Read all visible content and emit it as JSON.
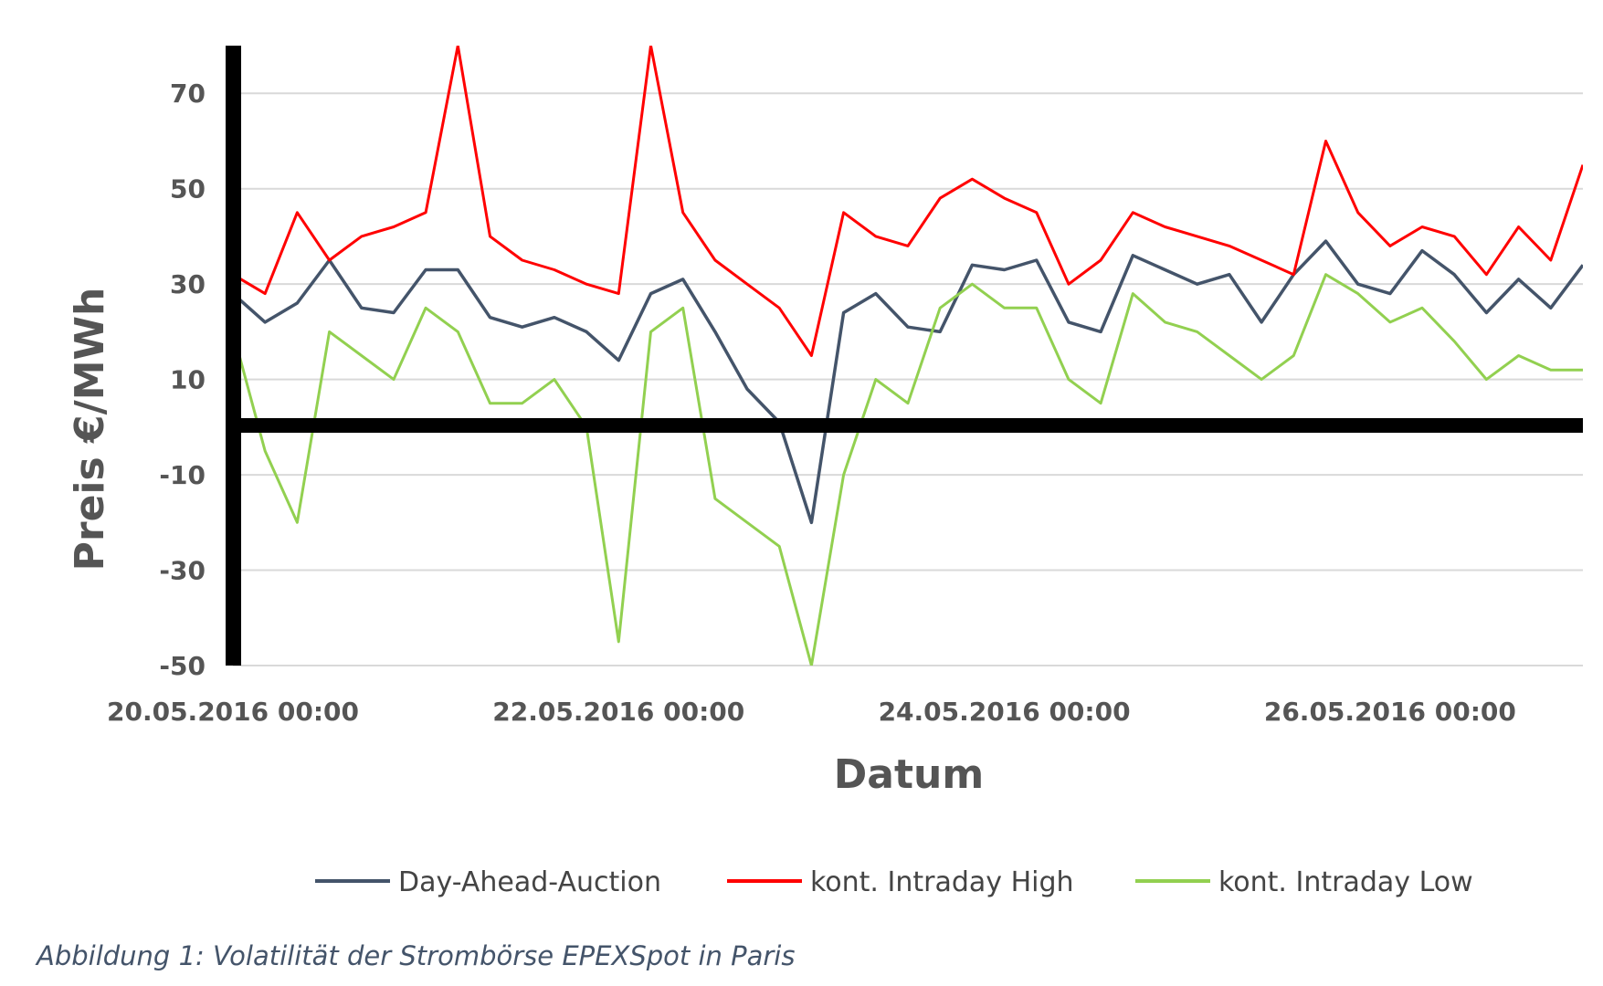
{
  "chart_data": {
    "type": "line",
    "xlabel": "Datum",
    "ylabel": "Preis €/MWh",
    "xlim": [
      "20.05.2016 00:00",
      "27.05.2016 00:00"
    ],
    "ylim": [
      -50,
      80
    ],
    "yticks": [
      70,
      50,
      30,
      10,
      -10,
      -30,
      -50
    ],
    "xticks": [
      "20.05.2016 00:00",
      "22.05.2016 00:00",
      "24.05.2016 00:00",
      "26.05.2016 00:00"
    ],
    "grid": "horizontal",
    "legend_position": "bottom",
    "series": [
      {
        "name": "Day-Ahead-Auction",
        "color": "#44546A",
        "x": [
          "20.05.2016 00:00",
          "20.05.2016 04:00",
          "20.05.2016 08:00",
          "20.05.2016 12:00",
          "20.05.2016 16:00",
          "20.05.2016 20:00",
          "21.05.2016 00:00",
          "21.05.2016 04:00",
          "21.05.2016 08:00",
          "21.05.2016 12:00",
          "21.05.2016 16:00",
          "21.05.2016 20:00",
          "22.05.2016 00:00",
          "22.05.2016 04:00",
          "22.05.2016 08:00",
          "22.05.2016 12:00",
          "22.05.2016 16:00",
          "22.05.2016 20:00",
          "23.05.2016 00:00",
          "23.05.2016 04:00",
          "23.05.2016 08:00",
          "23.05.2016 12:00",
          "23.05.2016 16:00",
          "23.05.2016 20:00",
          "24.05.2016 00:00",
          "24.05.2016 04:00",
          "24.05.2016 08:00",
          "24.05.2016 12:00",
          "24.05.2016 16:00",
          "24.05.2016 20:00",
          "25.05.2016 00:00",
          "25.05.2016 04:00",
          "25.05.2016 08:00",
          "25.05.2016 12:00",
          "25.05.2016 16:00",
          "25.05.2016 20:00",
          "26.05.2016 00:00",
          "26.05.2016 04:00",
          "26.05.2016 08:00",
          "26.05.2016 12:00",
          "26.05.2016 16:00",
          "26.05.2016 20:00",
          "27.05.2016 00:00"
        ],
        "values": [
          28,
          22,
          26,
          35,
          25,
          24,
          33,
          33,
          23,
          21,
          23,
          20,
          14,
          28,
          31,
          20,
          8,
          1,
          -20,
          24,
          28,
          21,
          20,
          34,
          33,
          35,
          22,
          20,
          36,
          33,
          30,
          32,
          22,
          32,
          39,
          30,
          28,
          37,
          32,
          24,
          31,
          25,
          34
        ]
      },
      {
        "name": "kont. Intraday High",
        "color": "#FF0000",
        "x": [
          "20.05.2016 00:00",
          "20.05.2016 04:00",
          "20.05.2016 08:00",
          "20.05.2016 12:00",
          "20.05.2016 16:00",
          "20.05.2016 20:00",
          "21.05.2016 00:00",
          "21.05.2016 04:00",
          "21.05.2016 08:00",
          "21.05.2016 12:00",
          "21.05.2016 16:00",
          "21.05.2016 20:00",
          "22.05.2016 00:00",
          "22.05.2016 04:00",
          "22.05.2016 08:00",
          "22.05.2016 12:00",
          "22.05.2016 16:00",
          "22.05.2016 20:00",
          "23.05.2016 00:00",
          "23.05.2016 04:00",
          "23.05.2016 08:00",
          "23.05.2016 12:00",
          "23.05.2016 16:00",
          "23.05.2016 20:00",
          "24.05.2016 00:00",
          "24.05.2016 04:00",
          "24.05.2016 08:00",
          "24.05.2016 12:00",
          "24.05.2016 16:00",
          "24.05.2016 20:00",
          "25.05.2016 00:00",
          "25.05.2016 04:00",
          "25.05.2016 08:00",
          "25.05.2016 12:00",
          "25.05.2016 16:00",
          "25.05.2016 20:00",
          "26.05.2016 00:00",
          "26.05.2016 04:00",
          "26.05.2016 08:00",
          "26.05.2016 12:00",
          "26.05.2016 16:00",
          "26.05.2016 20:00",
          "27.05.2016 00:00"
        ],
        "values": [
          32,
          28,
          45,
          35,
          40,
          42,
          45,
          80,
          40,
          35,
          33,
          30,
          28,
          80,
          45,
          35,
          30,
          25,
          15,
          45,
          40,
          38,
          48,
          52,
          48,
          45,
          30,
          35,
          45,
          42,
          40,
          38,
          35,
          32,
          60,
          45,
          38,
          42,
          40,
          32,
          42,
          35,
          55
        ]
      },
      {
        "name": "kont. Intraday Low",
        "color": "#92D050",
        "x": [
          "20.05.2016 00:00",
          "20.05.2016 04:00",
          "20.05.2016 08:00",
          "20.05.2016 12:00",
          "20.05.2016 16:00",
          "20.05.2016 20:00",
          "21.05.2016 00:00",
          "21.05.2016 04:00",
          "21.05.2016 08:00",
          "21.05.2016 12:00",
          "21.05.2016 16:00",
          "21.05.2016 20:00",
          "22.05.2016 00:00",
          "22.05.2016 04:00",
          "22.05.2016 08:00",
          "22.05.2016 12:00",
          "22.05.2016 16:00",
          "22.05.2016 20:00",
          "23.05.2016 00:00",
          "23.05.2016 04:00",
          "23.05.2016 08:00",
          "23.05.2016 12:00",
          "23.05.2016 16:00",
          "23.05.2016 20:00",
          "24.05.2016 00:00",
          "24.05.2016 04:00",
          "24.05.2016 08:00",
          "24.05.2016 12:00",
          "24.05.2016 16:00",
          "24.05.2016 20:00",
          "25.05.2016 00:00",
          "25.05.2016 04:00",
          "25.05.2016 08:00",
          "25.05.2016 12:00",
          "25.05.2016 16:00",
          "25.05.2016 20:00",
          "26.05.2016 00:00",
          "26.05.2016 04:00",
          "26.05.2016 08:00",
          "26.05.2016 12:00",
          "26.05.2016 16:00",
          "26.05.2016 20:00",
          "27.05.2016 00:00"
        ],
        "values": [
          20,
          -5,
          -20,
          20,
          15,
          10,
          25,
          20,
          5,
          5,
          10,
          0,
          -45,
          20,
          25,
          -15,
          -20,
          -25,
          -50,
          -10,
          10,
          5,
          25,
          30,
          25,
          25,
          10,
          5,
          28,
          22,
          20,
          15,
          10,
          15,
          32,
          28,
          22,
          25,
          18,
          10,
          15,
          12,
          12
        ]
      }
    ]
  },
  "caption": "Abbildung 1: Volatilität der Strombörse EPEXSpot in Paris"
}
